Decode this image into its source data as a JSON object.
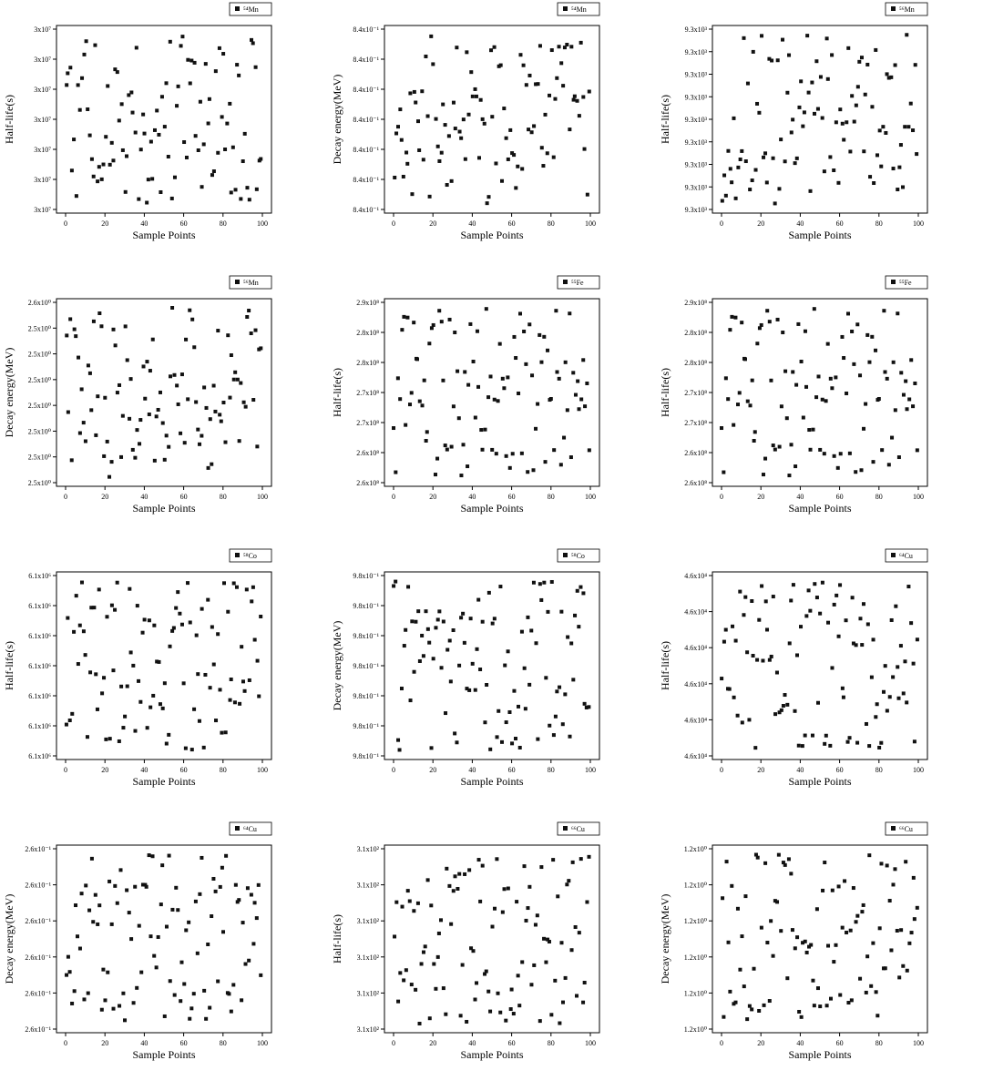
{
  "chart_data": [
    {
      "type": "scatter",
      "legend": "⁵⁴Mn",
      "xlabel": "Sample Points",
      "ylabel": "Half-life(s)",
      "xticks": [
        "0",
        "20",
        "40",
        "60",
        "80",
        "100"
      ],
      "yticks": [
        "3x10⁷",
        "3x10⁷",
        "3x10⁷",
        "3x10⁷",
        "3x10⁷",
        "3x10⁷",
        "3x10⁷"
      ],
      "seed": 11
    },
    {
      "type": "scatter",
      "legend": "⁵⁴Mn",
      "xlabel": "Sample Points",
      "ylabel": "Decay energy(MeV)",
      "xticks": [
        "0",
        "20",
        "40",
        "60",
        "80",
        "100"
      ],
      "yticks": [
        "8.4x10⁻¹",
        "8.4x10⁻¹",
        "8.4x10⁻¹",
        "8.4x10⁻¹",
        "8.4x10⁻¹",
        "8.4x10⁻¹",
        "8.4x10⁻¹"
      ],
      "seed": 23
    },
    {
      "type": "scatter",
      "legend": "⁵⁶Mn",
      "xlabel": "Sample Points",
      "ylabel": "Half-life(s)",
      "xticks": [
        "0",
        "20",
        "40",
        "60",
        "80",
        "100"
      ],
      "yticks": [
        "9.3x10³",
        "9.3x10³",
        "9.3x10³",
        "9.3x10³",
        "9.3x10³",
        "9.3x10³",
        "9.3x10³",
        "9.3x10³",
        "9.3x10³"
      ],
      "seed": 37
    },
    {
      "type": "scatter",
      "legend": "⁵⁶Mn",
      "xlabel": "Sample Points",
      "ylabel": "Decay energy(MeV)",
      "xticks": [
        "0",
        "20",
        "40",
        "60",
        "80",
        "100"
      ],
      "yticks": [
        "2.5x10⁰",
        "2.5x10⁰",
        "2.5x10⁰",
        "2.5x10⁰",
        "2.5x10⁰",
        "2.5x10⁰",
        "2.5x10⁰",
        "2.6x10⁰"
      ],
      "seed": 41
    },
    {
      "type": "scatter",
      "legend": "⁵⁵Fe",
      "xlabel": "Sample Points",
      "ylabel": "Half-life(s)",
      "xticks": [
        "0",
        "20",
        "40",
        "60",
        "80",
        "100"
      ],
      "yticks": [
        "2.6x10⁸",
        "2.6x10⁸",
        "2.7x10⁸",
        "2.7x10⁸",
        "2.8x10⁸",
        "2.8x10⁸",
        "2.9x10⁸"
      ],
      "seed": 53
    },
    {
      "type": "scatter",
      "legend": "⁵⁵Fe",
      "xlabel": "Sample Points",
      "ylabel": "Half-life(s)",
      "xticks": [
        "0",
        "20",
        "40",
        "60",
        "80",
        "100"
      ],
      "yticks": [
        "2.6x10⁸",
        "2.6x10⁸",
        "2.7x10⁸",
        "2.7x10⁸",
        "2.8x10⁸",
        "2.8x10⁸",
        "2.9x10⁸"
      ],
      "seed": 53
    },
    {
      "type": "scatter",
      "legend": "⁵⁸Co",
      "xlabel": "Sample Points",
      "ylabel": "Half-life(s)",
      "xticks": [
        "0",
        "20",
        "40",
        "60",
        "80",
        "100"
      ],
      "yticks": [
        "6.1x10⁶",
        "6.1x10⁶",
        "6.1x10⁶",
        "6.1x10⁶",
        "6.1x10⁶",
        "6.1x10⁶",
        "6.1x10⁶"
      ],
      "seed": 67
    },
    {
      "type": "scatter",
      "legend": "⁵⁸Co",
      "xlabel": "Sample Points",
      "ylabel": "Decay energy(MeV)",
      "xticks": [
        "0",
        "20",
        "40",
        "60",
        "80",
        "100"
      ],
      "yticks": [
        "9.8x10⁻¹",
        "9.8x10⁻¹",
        "9.8x10⁻¹",
        "9.8x10⁻¹",
        "9.8x10⁻¹",
        "9.8x10⁻¹",
        "9.8x10⁻¹"
      ],
      "seed": 71
    },
    {
      "type": "scatter",
      "legend": "⁶⁴Cu",
      "xlabel": "Sample Points",
      "ylabel": "Half-life(s)",
      "xticks": [
        "0",
        "20",
        "40",
        "60",
        "80",
        "100"
      ],
      "yticks": [
        "4.6x10⁴",
        "4.6x10⁴",
        "4.6x10⁴",
        "4.6x10⁴",
        "4.6x10⁴",
        "4.6x10⁴"
      ],
      "seed": 83
    },
    {
      "type": "scatter",
      "legend": "⁶⁴Cu",
      "xlabel": "Sample Points",
      "ylabel": "Decay energy(MeV)",
      "xticks": [
        "0",
        "20",
        "40",
        "60",
        "80",
        "100"
      ],
      "yticks": [
        "2.6x10⁻¹",
        "2.6x10⁻¹",
        "2.6x10⁻¹",
        "2.6x10⁻¹",
        "2.6x10⁻¹",
        "2.6x10⁻¹"
      ],
      "seed": 97
    },
    {
      "type": "scatter",
      "legend": "⁶⁶Cu",
      "xlabel": "Sample Points",
      "ylabel": "Half-life(s)",
      "xticks": [
        "0",
        "20",
        "40",
        "60",
        "80",
        "100"
      ],
      "yticks": [
        "3.1x10²",
        "3.1x10²",
        "3.1x10²",
        "3.1x10²",
        "3.1x10²",
        "3.1x10²"
      ],
      "seed": 103
    },
    {
      "type": "scatter",
      "legend": "⁶⁶Cu",
      "xlabel": "Sample Points",
      "ylabel": "Decay energy(MeV)",
      "xticks": [
        "0",
        "20",
        "40",
        "60",
        "80",
        "100"
      ],
      "yticks": [
        "1.2x10⁰",
        "1.2x10⁰",
        "1.2x10⁰",
        "1.2x10⁰",
        "1.2x10⁰",
        "1.2x10⁰"
      ],
      "seed": 109
    }
  ]
}
